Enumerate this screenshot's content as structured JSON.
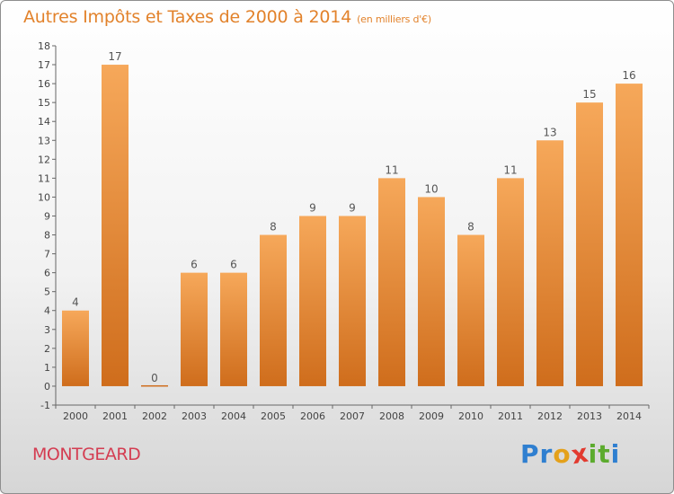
{
  "header": {
    "title": "Autres Impôts et Taxes de 2000 à 2014",
    "unit": "(en milliers d'€)"
  },
  "footer": {
    "commune": "MONTGEARD",
    "brand_letters": [
      "P",
      "r",
      "o",
      "x",
      "i",
      "t",
      "i"
    ]
  },
  "colors": {
    "title": "#e2822b",
    "commune": "#d43d52",
    "bar_top": "#f6a85a",
    "bar_bottom": "#cf6d1c",
    "brand": [
      "#2f7fd0",
      "#2f7fd0",
      "#e4a11b",
      "#e23a2f",
      "#5cab2e",
      "#5cab2e",
      "#2f7fd0"
    ]
  },
  "chart_data": {
    "type": "bar",
    "categories": [
      "2000",
      "2001",
      "2002",
      "2003",
      "2004",
      "2005",
      "2006",
      "2007",
      "2008",
      "2009",
      "2010",
      "2011",
      "2012",
      "2013",
      "2014"
    ],
    "values": [
      4,
      17,
      0,
      6,
      6,
      8,
      9,
      9,
      11,
      10,
      8,
      11,
      13,
      15,
      16
    ],
    "value_labels": [
      "4",
      "17",
      "0",
      "6",
      "6",
      "8",
      "9",
      "9",
      "11",
      "10",
      "8",
      "11",
      "13",
      "15",
      "16"
    ],
    "y_ticks": [
      "-1",
      "0",
      "1",
      "2",
      "3",
      "4",
      "5",
      "6",
      "7",
      "8",
      "9",
      "10",
      "11",
      "12",
      "13",
      "14",
      "15",
      "16",
      "17",
      "18"
    ],
    "ylim": [
      -1,
      18
    ],
    "grid": false
  }
}
